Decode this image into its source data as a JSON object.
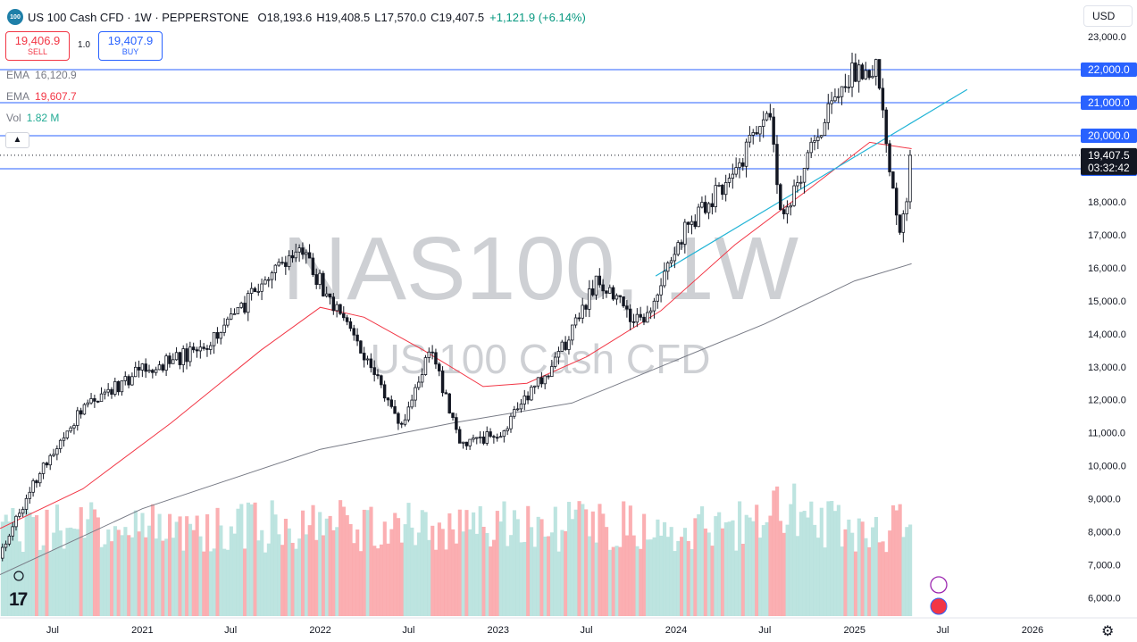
{
  "header": {
    "symbol_badge": "100",
    "title": "US 100 Cash CFD · 1W · PEPPERSTONE",
    "ohlc": [
      {
        "label": "O",
        "value": "18,193.6"
      },
      {
        "label": "H",
        "value": "19,408.5"
      },
      {
        "label": "L",
        "value": "17,570.0"
      },
      {
        "label": "C",
        "value": "19,407.5"
      }
    ],
    "change": "+1,121.9 (+6.14%)"
  },
  "trade": {
    "sell_price": "19,406.9",
    "sell_label": "SELL",
    "quantity": "1.0",
    "buy_price": "19,407.9",
    "buy_label": "BUY"
  },
  "indicators": [
    {
      "name": "EMA",
      "value": "16,120.9",
      "color": "#787b86"
    },
    {
      "name": "EMA",
      "value": "19,607.7",
      "color": "#f23645"
    },
    {
      "name": "Vol",
      "value": "1.82 M",
      "color": "#22ab94"
    }
  ],
  "currency": "USD",
  "watermark": {
    "line1": "NAS100, 1W",
    "line2": "US 100 Cash CFD"
  },
  "icons": {
    "collapse": "chevron-up-icon",
    "settings": "gear-icon",
    "logo": "tradingview-logo",
    "flash": "flash-icon",
    "flag": "us-flag-icon",
    "fire": "fire-icon"
  },
  "colors": {
    "up": "#ffffff",
    "down": "#131722",
    "ema_long": "#787b86",
    "ema_short": "#f23645",
    "trendline": "#22b4d6",
    "hline": "#2962ff",
    "vol_up": "#b2dfdb",
    "vol_down": "#faa1a4"
  },
  "chart_data": {
    "type": "candlestick",
    "timeframe": "1W",
    "y_axis": {
      "ticks": [
        6000,
        7000,
        8000,
        9000,
        10000,
        11000,
        12000,
        13000,
        14000,
        15000,
        16000,
        17000,
        18000,
        19000,
        20000,
        21000,
        22000,
        23000
      ],
      "tick_labels": [
        "6,000.0",
        "7,000.0",
        "8,000.0",
        "9,000.0",
        "10,000.0",
        "11,000.0",
        "12,000.0",
        "13,000.0",
        "14,000.0",
        "15,000.0",
        "16,000.0",
        "17,000.0",
        "18,000.0",
        "19,000.0",
        "20,000.0",
        "21,000.0",
        "22,000.0",
        "23,000.0"
      ],
      "range": [
        5500,
        23300
      ]
    },
    "x_axis": {
      "ticks": [
        {
          "label": "Jul",
          "date": "2020-07-01"
        },
        {
          "label": "2021",
          "date": "2021-01-01"
        },
        {
          "label": "Jul",
          "date": "2021-07-01"
        },
        {
          "label": "2022",
          "date": "2022-01-01"
        },
        {
          "label": "Jul",
          "date": "2022-07-01"
        },
        {
          "label": "2023",
          "date": "2023-01-01"
        },
        {
          "label": "Jul",
          "date": "2023-07-01"
        },
        {
          "label": "2024",
          "date": "2024-01-01"
        },
        {
          "label": "Jul",
          "date": "2024-07-01"
        },
        {
          "label": "2025",
          "date": "2025-01-01"
        },
        {
          "label": "Jul",
          "date": "2025-07-01"
        },
        {
          "label": "2026",
          "date": "2026-01-01"
        }
      ],
      "range": [
        "2020-03-15",
        "2026-04-10"
      ]
    },
    "horizontal_lines": [
      {
        "price": 22000,
        "label": "22,000.0"
      },
      {
        "price": 21000,
        "label": "21,000.0"
      },
      {
        "price": 20000,
        "label": "20,000.0"
      },
      {
        "price": 19000,
        "label": "19,000.0"
      }
    ],
    "last_price": {
      "price": 19407.5,
      "label": "19,407.5",
      "countdown": "03:32:42"
    },
    "trendline": {
      "from": {
        "date": "2023-11-20",
        "price": 15750
      },
      "to": {
        "date": "2025-08-20",
        "price": 21400
      }
    },
    "key_closes": [
      {
        "date": "2020-03-20",
        "close": 7500
      },
      {
        "date": "2020-06-01",
        "close": 9700
      },
      {
        "date": "2020-09-01",
        "close": 11800
      },
      {
        "date": "2021-01-01",
        "close": 12900
      },
      {
        "date": "2021-05-01",
        "close": 13500
      },
      {
        "date": "2021-09-01",
        "close": 15400
      },
      {
        "date": "2021-11-20",
        "close": 16500
      },
      {
        "date": "2022-03-01",
        "close": 14200
      },
      {
        "date": "2022-06-15",
        "close": 11200
      },
      {
        "date": "2022-08-15",
        "close": 13500
      },
      {
        "date": "2022-10-15",
        "close": 10700
      },
      {
        "date": "2022-12-30",
        "close": 10900
      },
      {
        "date": "2023-05-01",
        "close": 13200
      },
      {
        "date": "2023-07-20",
        "close": 15600
      },
      {
        "date": "2023-10-25",
        "close": 14200
      },
      {
        "date": "2024-01-01",
        "close": 16800
      },
      {
        "date": "2024-03-25",
        "close": 18300
      },
      {
        "date": "2024-07-10",
        "close": 20500
      },
      {
        "date": "2024-08-05",
        "close": 17600
      },
      {
        "date": "2024-12-15",
        "close": 21800
      },
      {
        "date": "2025-02-17",
        "close": 22000
      },
      {
        "date": "2025-03-10",
        "close": 19400
      },
      {
        "date": "2025-04-07",
        "close": 17000
      },
      {
        "date": "2025-04-28",
        "close": 19407.5
      }
    ],
    "ema_long_points": [
      {
        "date": "2020-03-15",
        "value": 6700
      },
      {
        "date": "2021-01-01",
        "value": 8700
      },
      {
        "date": "2022-01-01",
        "value": 10500
      },
      {
        "date": "2022-10-01",
        "value": 11300
      },
      {
        "date": "2023-06-01",
        "value": 11900
      },
      {
        "date": "2024-01-01",
        "value": 13200
      },
      {
        "date": "2024-07-01",
        "value": 14300
      },
      {
        "date": "2025-01-01",
        "value": 15600
      },
      {
        "date": "2025-04-28",
        "value": 16120.9
      }
    ],
    "ema_short_points": [
      {
        "date": "2020-03-15",
        "value": 8100
      },
      {
        "date": "2020-09-01",
        "value": 9300
      },
      {
        "date": "2021-03-01",
        "value": 11300
      },
      {
        "date": "2021-09-01",
        "value": 13500
      },
      {
        "date": "2022-01-01",
        "value": 14800
      },
      {
        "date": "2022-04-01",
        "value": 14500
      },
      {
        "date": "2022-08-01",
        "value": 13500
      },
      {
        "date": "2022-12-01",
        "value": 12400
      },
      {
        "date": "2023-03-01",
        "value": 12500
      },
      {
        "date": "2023-07-01",
        "value": 13300
      },
      {
        "date": "2023-12-01",
        "value": 14700
      },
      {
        "date": "2024-05-01",
        "value": 16700
      },
      {
        "date": "2024-10-01",
        "value": 18400
      },
      {
        "date": "2025-02-01",
        "value": 19800
      },
      {
        "date": "2025-04-28",
        "value": 19607.7
      }
    ],
    "volume_last": "1.82 M"
  }
}
